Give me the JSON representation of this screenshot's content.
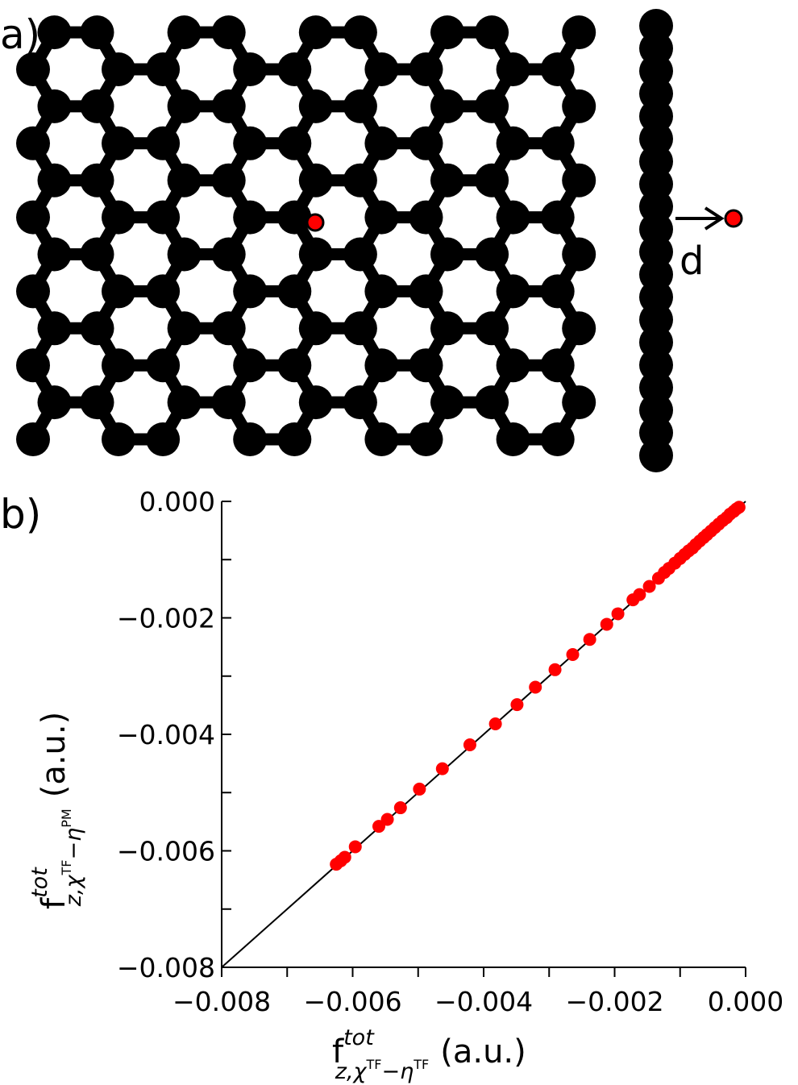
{
  "panel_a": {
    "label": "a)",
    "distance_label": "d",
    "atom_color": "#000000",
    "adatom_color": "#ff0000"
  },
  "panel_b": {
    "label": "b)"
  },
  "chart_data": {
    "type": "scatter",
    "xlabel": "f",
    "xlabel_sup": "tot",
    "xlabel_sub": "z,χ",
    "xlabel_sub_sup1": "TF",
    "xlabel_sub_mid": "−η",
    "xlabel_sub_sup2": "TF",
    "xlabel_unit": "(a.u.)",
    "ylabel": "f",
    "ylabel_sup": "tot",
    "ylabel_sub": "z,χ",
    "ylabel_sub_sup1": "TF",
    "ylabel_sub_mid": "−η",
    "ylabel_sub_sup2": "PM",
    "ylabel_unit": "(a.u.)",
    "xlim": [
      -0.008,
      0.0
    ],
    "ylim": [
      -0.008,
      0.0
    ],
    "x_ticks": [
      "−0.008",
      "−0.006",
      "−0.004",
      "−0.002",
      "0.000"
    ],
    "y_ticks": [
      "−0.008",
      "−0.006",
      "−0.004",
      "−0.002",
      "0.000"
    ],
    "x_tick_values": [
      -0.008,
      -0.006,
      -0.004,
      -0.002,
      0.0
    ],
    "y_tick_values": [
      -0.008,
      -0.006,
      -0.004,
      -0.002,
      0.0
    ],
    "minor_tick_values": [
      -0.007,
      -0.005,
      -0.003,
      -0.001
    ],
    "grid": false,
    "reference_line": {
      "from": [
        -0.008,
        -0.008
      ],
      "to": [
        0.0,
        0.0
      ],
      "color": "#000000"
    },
    "marker_color": "#ff0000",
    "series": [
      {
        "x": [
          -0.00625,
          -0.00618,
          -0.00612,
          -0.00596,
          -0.0056,
          -0.00547,
          -0.00527,
          -0.00498,
          -0.00463,
          -0.00421,
          -0.00382,
          -0.00349,
          -0.00321,
          -0.00291,
          -0.00264,
          -0.00238,
          -0.00212,
          -0.00195,
          -0.00172,
          -0.00162,
          -0.00147,
          -0.00133,
          -0.00124,
          -0.00117,
          -0.00108,
          -0.001,
          -0.00093,
          -0.00087,
          -0.00081,
          -0.00076,
          -0.0007,
          -0.00064,
          -0.00059,
          -0.00053,
          -0.00047,
          -0.00041,
          -0.00035,
          -0.00029,
          -0.00024,
          -0.00018,
          -0.00014,
          -0.0001
        ],
        "y": [
          -0.00623,
          -0.00617,
          -0.00611,
          -0.00593,
          -0.00558,
          -0.00546,
          -0.00526,
          -0.00494,
          -0.00459,
          -0.00418,
          -0.00382,
          -0.00349,
          -0.00319,
          -0.00289,
          -0.00263,
          -0.00237,
          -0.00211,
          -0.00193,
          -0.00169,
          -0.0016,
          -0.00146,
          -0.00132,
          -0.00122,
          -0.00115,
          -0.00106,
          -0.00098,
          -0.00091,
          -0.00085,
          -0.0008,
          -0.00074,
          -0.00068,
          -0.00062,
          -0.00057,
          -0.00051,
          -0.00045,
          -0.00039,
          -0.00033,
          -0.00028,
          -0.00022,
          -0.00017,
          -0.00013,
          -0.0001
        ]
      }
    ]
  }
}
